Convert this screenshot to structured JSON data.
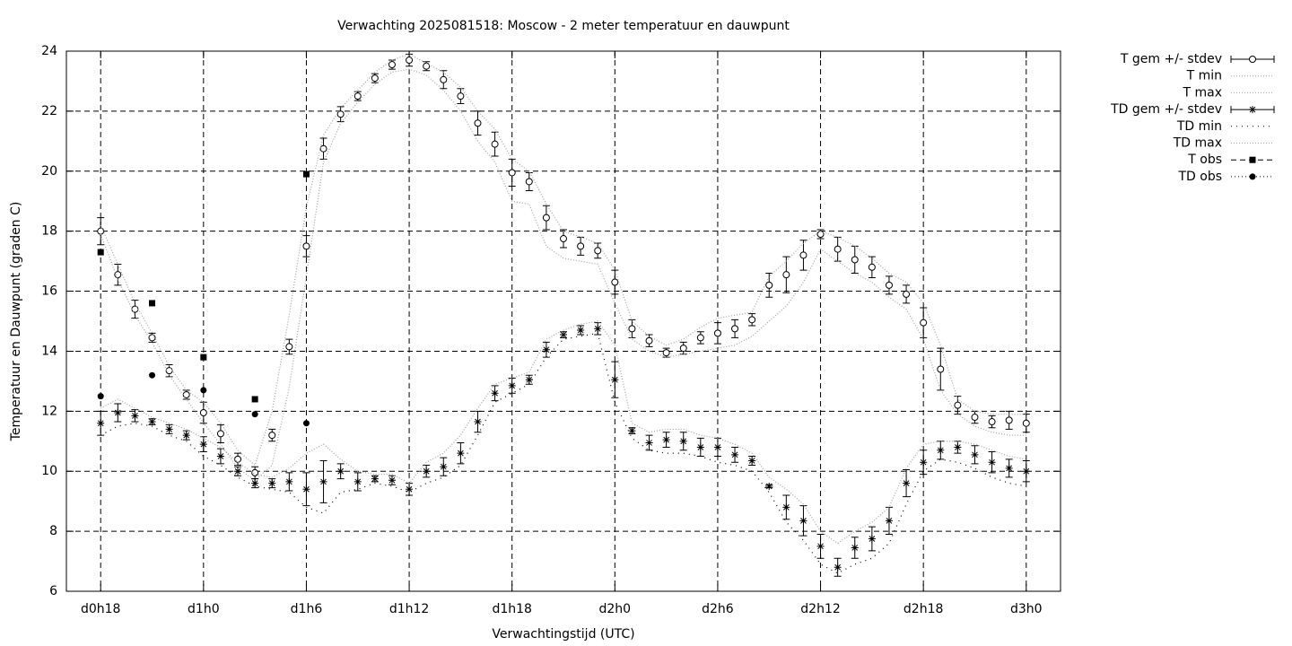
{
  "chart_data": {
    "type": "line",
    "title": "Verwachting 2025081518: Moscow - 2 meter temperatuur en dauwpunt",
    "x_label": "Verwachtingstijd (UTC)",
    "y_label": "Temperatuur en Dauwpunt (graden C)",
    "xlim": [
      16,
      74
    ],
    "xticks": [
      {
        "value": 18,
        "label": "d0h18"
      },
      {
        "value": 24,
        "label": "d1h0"
      },
      {
        "value": 30,
        "label": "d1h6"
      },
      {
        "value": 36,
        "label": "d1h12"
      },
      {
        "value": 42,
        "label": "d1h18"
      },
      {
        "value": 48,
        "label": "d2h0"
      },
      {
        "value": 54,
        "label": "d2h6"
      },
      {
        "value": 60,
        "label": "d2h12"
      },
      {
        "value": 66,
        "label": "d2h18"
      },
      {
        "value": 72,
        "label": "d3h0"
      }
    ],
    "ylim": [
      6,
      24
    ],
    "yticks": [
      6,
      8,
      10,
      12,
      14,
      16,
      18,
      20,
      22,
      24
    ],
    "grid": true,
    "legend": "outside-right",
    "x": [
      18,
      19,
      20,
      21,
      22,
      23,
      24,
      25,
      26,
      27,
      28,
      29,
      30,
      31,
      32,
      33,
      34,
      35,
      36,
      37,
      38,
      39,
      40,
      41,
      42,
      43,
      44,
      45,
      46,
      47,
      48,
      49,
      50,
      51,
      52,
      53,
      54,
      55,
      56,
      57,
      58,
      59,
      60,
      61,
      62,
      63,
      64,
      65,
      66,
      67,
      68,
      69,
      70,
      71,
      72
    ],
    "series": [
      {
        "name": "T gem +/- stdev",
        "color": "#000000",
        "marker": "circle",
        "values": [
          18.0,
          16.55,
          15.4,
          14.45,
          13.35,
          12.55,
          11.95,
          11.25,
          10.4,
          9.95,
          11.2,
          14.15,
          17.5,
          20.75,
          21.9,
          22.5,
          23.1,
          23.55,
          23.7,
          23.5,
          23.05,
          22.5,
          21.6,
          20.9,
          19.95,
          19.65,
          18.45,
          17.75,
          17.5,
          17.35,
          16.3,
          14.75,
          14.35,
          13.95,
          14.1,
          14.45,
          14.6,
          14.75,
          15.05,
          16.2,
          16.55,
          17.2,
          17.9,
          17.4,
          17.05,
          16.8,
          16.2,
          15.9,
          14.95,
          13.4,
          12.2,
          11.8,
          11.65,
          11.7,
          11.6
        ],
        "errors": [
          0.45,
          0.35,
          0.3,
          0.15,
          0.2,
          0.15,
          0.35,
          0.3,
          0.2,
          0.2,
          0.2,
          0.25,
          0.35,
          0.35,
          0.25,
          0.15,
          0.15,
          0.15,
          0.2,
          0.15,
          0.3,
          0.25,
          0.4,
          0.4,
          0.45,
          0.3,
          0.4,
          0.3,
          0.3,
          0.25,
          0.4,
          0.3,
          0.2,
          0.15,
          0.2,
          0.2,
          0.35,
          0.3,
          0.2,
          0.4,
          0.6,
          0.5,
          0.15,
          0.4,
          0.45,
          0.35,
          0.3,
          0.3,
          0.5,
          0.7,
          0.3,
          0.2,
          0.2,
          0.3,
          0.3
        ]
      },
      {
        "name": "T min",
        "color": "#a0a0a0",
        "marker": "none",
        "values": [
          17.9,
          16.4,
          15.2,
          14.3,
          13.2,
          12.4,
          11.6,
          10.9,
          10.1,
          9.7,
          10.2,
          12.8,
          16.5,
          20.3,
          21.6,
          22.3,
          22.9,
          23.3,
          23.4,
          23.2,
          22.7,
          22.0,
          21.0,
          20.3,
          19.0,
          18.9,
          17.5,
          17.1,
          17.0,
          16.9,
          15.6,
          14.4,
          14.0,
          13.8,
          13.9,
          14.0,
          14.1,
          14.2,
          14.5,
          15.0,
          15.5,
          16.3,
          17.4,
          17.0,
          16.6,
          16.3,
          15.8,
          15.4,
          14.4,
          12.7,
          11.9,
          11.5,
          11.3,
          11.2,
          11.2
        ]
      },
      {
        "name": "T max",
        "color": "#a0a0a0",
        "marker": "none",
        "values": [
          18.2,
          16.9,
          15.6,
          14.6,
          13.5,
          12.7,
          12.3,
          11.6,
          10.7,
          10.2,
          12.0,
          15.2,
          18.8,
          21.2,
          22.1,
          22.7,
          23.3,
          23.7,
          23.9,
          23.6,
          23.3,
          22.8,
          22.0,
          21.4,
          20.4,
          20.0,
          18.9,
          18.0,
          17.8,
          17.6,
          16.7,
          15.0,
          14.5,
          14.2,
          14.4,
          14.8,
          15.1,
          15.2,
          15.3,
          16.5,
          17.0,
          17.6,
          18.0,
          17.8,
          17.5,
          17.1,
          16.6,
          16.3,
          15.6,
          14.2,
          12.4,
          12.0,
          11.9,
          11.9,
          11.9
        ]
      },
      {
        "name": "TD gem +/- stdev",
        "color": "#000000",
        "marker": "star",
        "values": [
          11.6,
          11.95,
          11.85,
          11.65,
          11.4,
          11.2,
          10.9,
          10.5,
          10.0,
          9.6,
          9.6,
          9.65,
          9.4,
          9.65,
          10.0,
          9.65,
          9.75,
          9.7,
          9.4,
          10.0,
          10.15,
          10.6,
          11.65,
          12.6,
          12.85,
          13.05,
          14.05,
          14.55,
          14.7,
          14.75,
          13.05,
          11.35,
          10.95,
          11.05,
          11.0,
          10.8,
          10.8,
          10.55,
          10.35,
          9.5,
          8.8,
          8.35,
          7.5,
          6.8,
          7.45,
          7.75,
          8.35,
          9.6,
          10.3,
          10.7,
          10.8,
          10.55,
          10.3,
          10.1,
          10.0
        ],
        "errors": [
          0.4,
          0.3,
          0.2,
          0.1,
          0.15,
          0.15,
          0.25,
          0.25,
          0.15,
          0.15,
          0.15,
          0.3,
          0.55,
          0.7,
          0.25,
          0.3,
          0.1,
          0.15,
          0.2,
          0.2,
          0.3,
          0.35,
          0.35,
          0.25,
          0.25,
          0.15,
          0.25,
          0.1,
          0.15,
          0.2,
          0.6,
          0.1,
          0.25,
          0.25,
          0.3,
          0.3,
          0.3,
          0.25,
          0.15,
          0.05,
          0.4,
          0.5,
          0.4,
          0.3,
          0.35,
          0.4,
          0.45,
          0.45,
          0.4,
          0.3,
          0.2,
          0.3,
          0.35,
          0.3,
          0.35
        ]
      },
      {
        "name": "TD min",
        "color": "#000000",
        "marker": "none",
        "values": [
          11.2,
          11.5,
          11.6,
          11.5,
          11.2,
          11.0,
          10.5,
          10.2,
          9.8,
          9.5,
          9.4,
          9.3,
          8.8,
          8.6,
          9.3,
          9.4,
          9.6,
          9.5,
          9.3,
          9.6,
          9.8,
          10.2,
          11.2,
          12.3,
          12.6,
          12.9,
          13.8,
          14.4,
          14.5,
          14.6,
          12.3,
          11.1,
          10.7,
          10.6,
          10.6,
          10.5,
          10.3,
          10.2,
          10.0,
          9.3,
          8.3,
          7.7,
          6.9,
          6.6,
          6.9,
          7.1,
          7.6,
          8.9,
          10.0,
          10.4,
          10.3,
          10.1,
          9.8,
          9.6,
          9.5
        ]
      },
      {
        "name": "TD max",
        "color": "#a0a0a0",
        "marker": "none",
        "values": [
          12.1,
          12.4,
          12.1,
          11.8,
          11.6,
          11.4,
          11.1,
          10.8,
          10.3,
          9.9,
          9.8,
          10.1,
          10.6,
          10.9,
          10.4,
          10.0,
          9.9,
          9.9,
          9.6,
          10.3,
          10.6,
          11.2,
          12.1,
          12.9,
          13.1,
          13.3,
          14.4,
          14.7,
          14.9,
          15.0,
          14.2,
          11.6,
          11.3,
          11.4,
          11.4,
          11.2,
          11.1,
          10.9,
          10.6,
          9.8,
          9.4,
          8.9,
          8.0,
          7.6,
          8.0,
          8.3,
          8.8,
          10.1,
          10.9,
          11.0,
          11.0,
          10.9,
          10.7,
          10.5,
          10.4
        ]
      },
      {
        "name": "T obs",
        "color": "#000000",
        "marker": "square",
        "x": [
          18,
          21,
          24,
          27,
          30
        ],
        "values": [
          17.3,
          15.6,
          13.8,
          12.4,
          19.9
        ]
      },
      {
        "name": "TD obs",
        "color": "#000000",
        "marker": "dot",
        "x": [
          18,
          21,
          24,
          27,
          30
        ],
        "values": [
          12.5,
          13.2,
          12.7,
          11.9,
          11.6
        ]
      }
    ]
  }
}
